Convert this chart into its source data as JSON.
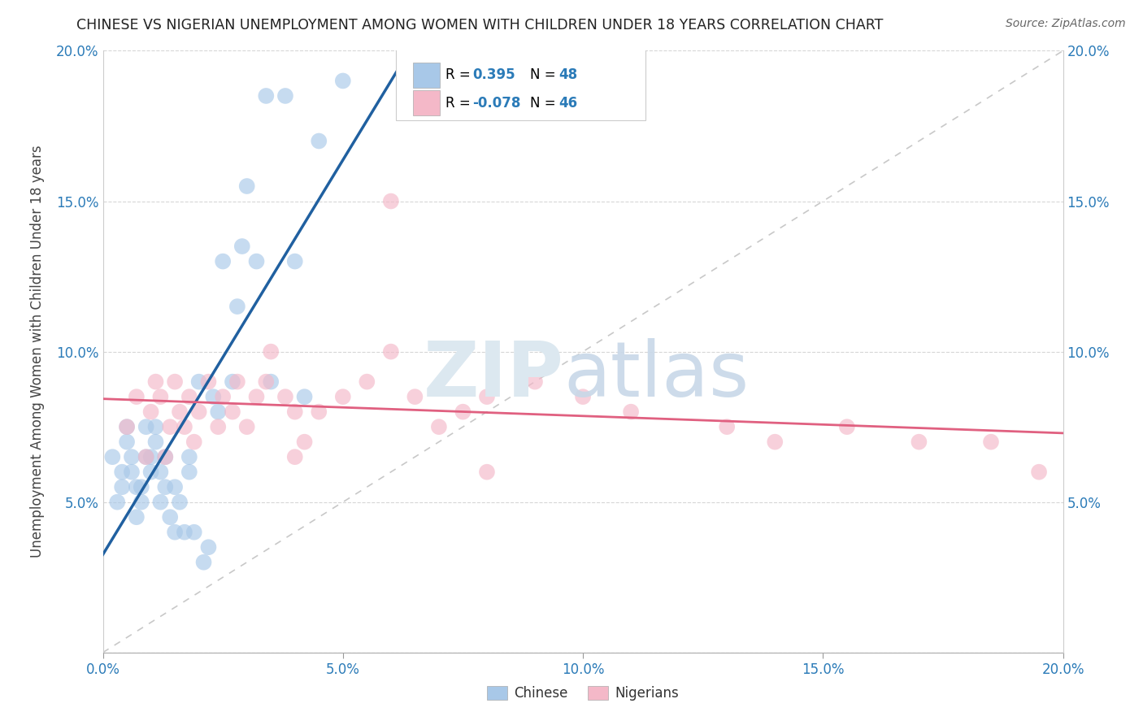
{
  "title": "CHINESE VS NIGERIAN UNEMPLOYMENT AMONG WOMEN WITH CHILDREN UNDER 18 YEARS CORRELATION CHART",
  "source": "Source: ZipAtlas.com",
  "ylabel": "Unemployment Among Women with Children Under 18 years",
  "xlim": [
    0.0,
    0.2
  ],
  "ylim": [
    0.0,
    0.2
  ],
  "xtick_vals": [
    0.0,
    0.05,
    0.1,
    0.15,
    0.2
  ],
  "xtick_labels": [
    "0.0%",
    "5.0%",
    "10.0%",
    "15.0%",
    "20.0%"
  ],
  "ytick_vals": [
    0.0,
    0.05,
    0.1,
    0.15,
    0.2
  ],
  "ytick_labels": [
    "",
    "5.0%",
    "10.0%",
    "15.0%",
    "20.0%"
  ],
  "chinese_R": 0.395,
  "chinese_N": 48,
  "nigerian_R": -0.078,
  "nigerian_N": 46,
  "chinese_color": "#A8C8E8",
  "nigerian_color": "#F4B8C8",
  "chinese_line_color": "#2060A0",
  "nigerian_line_color": "#E06080",
  "diagonal_color": "#BBBBBB",
  "background_color": "#FFFFFF",
  "chinese_x": [
    0.002,
    0.003,
    0.004,
    0.004,
    0.005,
    0.005,
    0.006,
    0.006,
    0.007,
    0.007,
    0.008,
    0.008,
    0.009,
    0.009,
    0.01,
    0.01,
    0.011,
    0.011,
    0.012,
    0.012,
    0.013,
    0.013,
    0.014,
    0.015,
    0.015,
    0.016,
    0.017,
    0.018,
    0.018,
    0.019,
    0.02,
    0.021,
    0.022,
    0.023,
    0.024,
    0.025,
    0.027,
    0.028,
    0.029,
    0.03,
    0.032,
    0.034,
    0.035,
    0.038,
    0.04,
    0.042,
    0.045,
    0.05
  ],
  "chinese_y": [
    0.065,
    0.05,
    0.055,
    0.06,
    0.07,
    0.075,
    0.065,
    0.06,
    0.045,
    0.055,
    0.05,
    0.055,
    0.065,
    0.075,
    0.06,
    0.065,
    0.07,
    0.075,
    0.05,
    0.06,
    0.065,
    0.055,
    0.045,
    0.04,
    0.055,
    0.05,
    0.04,
    0.06,
    0.065,
    0.04,
    0.09,
    0.03,
    0.035,
    0.085,
    0.08,
    0.13,
    0.09,
    0.115,
    0.135,
    0.155,
    0.13,
    0.185,
    0.09,
    0.185,
    0.13,
    0.085,
    0.17,
    0.19
  ],
  "nigerian_x": [
    0.005,
    0.007,
    0.009,
    0.01,
    0.011,
    0.012,
    0.013,
    0.014,
    0.015,
    0.016,
    0.017,
    0.018,
    0.019,
    0.02,
    0.022,
    0.024,
    0.025,
    0.027,
    0.028,
    0.03,
    0.032,
    0.034,
    0.035,
    0.038,
    0.04,
    0.042,
    0.045,
    0.05,
    0.055,
    0.06,
    0.065,
    0.07,
    0.075,
    0.08,
    0.09,
    0.1,
    0.11,
    0.13,
    0.14,
    0.155,
    0.17,
    0.185,
    0.195,
    0.08,
    0.04,
    0.06
  ],
  "nigerian_y": [
    0.075,
    0.085,
    0.065,
    0.08,
    0.09,
    0.085,
    0.065,
    0.075,
    0.09,
    0.08,
    0.075,
    0.085,
    0.07,
    0.08,
    0.09,
    0.075,
    0.085,
    0.08,
    0.09,
    0.075,
    0.085,
    0.09,
    0.1,
    0.085,
    0.08,
    0.07,
    0.08,
    0.085,
    0.09,
    0.1,
    0.085,
    0.075,
    0.08,
    0.085,
    0.09,
    0.085,
    0.08,
    0.075,
    0.07,
    0.075,
    0.07,
    0.07,
    0.06,
    0.06,
    0.065,
    0.15
  ],
  "legend_text_color": "#2B7BB8"
}
